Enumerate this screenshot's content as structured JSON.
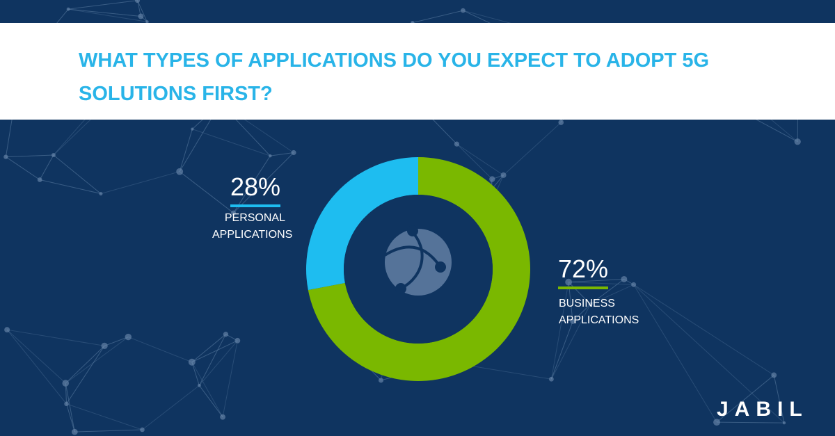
{
  "chart_data": {
    "type": "donut",
    "title": "WHAT TYPES OF APPLICATIONS DO YOU EXPECT TO ADOPT 5G SOLUTIONS FIRST?",
    "categories": [
      "PERSONAL APPLICATIONS",
      "BUSINESS APPLICATIONS"
    ],
    "values": [
      28,
      72
    ],
    "value_labels": [
      "28%",
      "72%"
    ],
    "colors": [
      "#1ebdf0",
      "#7ab800"
    ]
  },
  "brand": "JABIL"
}
